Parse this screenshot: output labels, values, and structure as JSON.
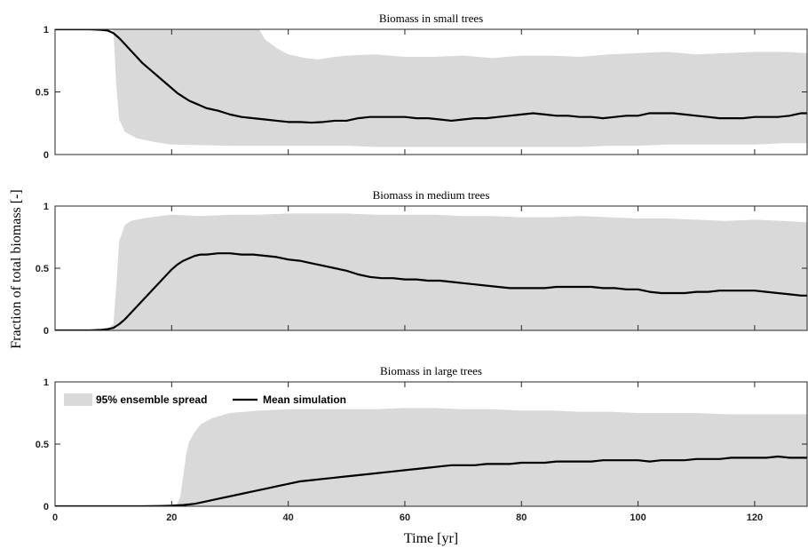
{
  "chart_data": [
    {
      "type": "area",
      "title": "Biomass in small trees",
      "xlim": [
        0,
        129
      ],
      "ylim": [
        0,
        1
      ],
      "yticks": [
        0,
        0.5,
        1
      ],
      "ytick_labels": [
        "0",
        "0.5",
        "1"
      ],
      "grid": false,
      "series": [
        {
          "name": "95% ensemble spread",
          "kind": "band",
          "x": [
            0,
            9,
            10,
            10.5,
            11,
            12,
            14,
            17,
            20,
            30,
            35,
            36,
            38,
            40,
            43,
            45,
            48,
            50,
            55,
            60,
            65,
            70,
            75,
            80,
            85,
            90,
            95,
            100,
            105,
            110,
            115,
            120,
            125,
            129
          ],
          "lower": [
            1,
            1,
            1,
            0.55,
            0.28,
            0.18,
            0.13,
            0.1,
            0.08,
            0.07,
            0.07,
            0.07,
            0.07,
            0.07,
            0.07,
            0.07,
            0.07,
            0.07,
            0.06,
            0.06,
            0.06,
            0.06,
            0.06,
            0.06,
            0.06,
            0.06,
            0.07,
            0.07,
            0.08,
            0.08,
            0.08,
            0.08,
            0.09,
            0.09
          ],
          "upper": [
            1,
            1,
            1,
            1,
            1,
            1,
            1,
            1,
            1,
            1,
            1,
            0.92,
            0.85,
            0.8,
            0.77,
            0.76,
            0.78,
            0.79,
            0.8,
            0.78,
            0.78,
            0.79,
            0.77,
            0.79,
            0.79,
            0.78,
            0.8,
            0.81,
            0.82,
            0.8,
            0.81,
            0.82,
            0.82,
            0.81
          ]
        },
        {
          "name": "Mean simulation",
          "kind": "line",
          "x": [
            0,
            6,
            8,
            9,
            10,
            11,
            12,
            13,
            14,
            15,
            16,
            17,
            18,
            19,
            20,
            21,
            22,
            23,
            24,
            25,
            26,
            27,
            28,
            30,
            32,
            34,
            36,
            38,
            40,
            42,
            44,
            46,
            48,
            50,
            52,
            54,
            56,
            58,
            60,
            62,
            64,
            66,
            68,
            70,
            72,
            74,
            76,
            78,
            80,
            82,
            84,
            86,
            88,
            90,
            92,
            94,
            96,
            98,
            100,
            102,
            104,
            106,
            108,
            110,
            112,
            114,
            116,
            118,
            120,
            122,
            124,
            126,
            128,
            129
          ],
          "y": [
            1,
            1,
            0.995,
            0.99,
            0.97,
            0.93,
            0.88,
            0.83,
            0.78,
            0.73,
            0.69,
            0.65,
            0.61,
            0.57,
            0.53,
            0.49,
            0.46,
            0.43,
            0.41,
            0.39,
            0.37,
            0.36,
            0.35,
            0.32,
            0.3,
            0.29,
            0.28,
            0.27,
            0.26,
            0.26,
            0.255,
            0.26,
            0.27,
            0.27,
            0.29,
            0.3,
            0.3,
            0.3,
            0.3,
            0.29,
            0.29,
            0.28,
            0.27,
            0.28,
            0.29,
            0.29,
            0.3,
            0.31,
            0.32,
            0.33,
            0.32,
            0.31,
            0.31,
            0.3,
            0.3,
            0.29,
            0.3,
            0.31,
            0.31,
            0.33,
            0.33,
            0.33,
            0.32,
            0.31,
            0.3,
            0.29,
            0.29,
            0.29,
            0.3,
            0.3,
            0.3,
            0.31,
            0.33,
            0.33
          ]
        }
      ]
    },
    {
      "type": "area",
      "title": "Biomass in medium trees",
      "xlim": [
        0,
        129
      ],
      "ylim": [
        0,
        1
      ],
      "yticks": [
        0,
        0.5,
        1
      ],
      "ytick_labels": [
        "0",
        "0.5",
        "1"
      ],
      "grid": false,
      "series": [
        {
          "name": "95% ensemble spread",
          "kind": "band",
          "x": [
            0,
            9,
            10,
            10.5,
            11,
            12,
            13,
            15,
            18,
            20,
            25,
            30,
            35,
            40,
            45,
            50,
            55,
            60,
            65,
            70,
            75,
            80,
            85,
            90,
            95,
            100,
            105,
            110,
            115,
            120,
            125,
            129
          ],
          "lower": [
            0,
            0,
            0,
            0,
            0,
            0,
            0,
            0,
            0,
            0,
            0,
            0,
            0,
            0,
            0,
            0,
            0,
            0,
            0,
            0,
            0,
            0,
            0,
            0,
            0,
            0,
            0,
            0,
            0,
            0,
            0,
            0
          ],
          "upper": [
            0,
            0.01,
            0.05,
            0.35,
            0.72,
            0.85,
            0.88,
            0.9,
            0.92,
            0.93,
            0.92,
            0.93,
            0.93,
            0.94,
            0.94,
            0.94,
            0.93,
            0.93,
            0.93,
            0.92,
            0.92,
            0.91,
            0.91,
            0.92,
            0.91,
            0.9,
            0.9,
            0.89,
            0.88,
            0.89,
            0.88,
            0.87
          ]
        },
        {
          "name": "Mean simulation",
          "kind": "line",
          "x": [
            0,
            6,
            8,
            9,
            10,
            11,
            12,
            13,
            14,
            15,
            16,
            17,
            18,
            19,
            20,
            21,
            22,
            23,
            24,
            25,
            26,
            28,
            30,
            32,
            34,
            36,
            38,
            40,
            42,
            44,
            46,
            48,
            50,
            52,
            54,
            56,
            58,
            60,
            62,
            64,
            66,
            68,
            70,
            72,
            74,
            76,
            78,
            80,
            82,
            84,
            86,
            88,
            90,
            92,
            94,
            96,
            98,
            100,
            102,
            104,
            106,
            108,
            110,
            112,
            114,
            116,
            118,
            120,
            122,
            124,
            126,
            128,
            129
          ],
          "y": [
            0,
            0,
            0.005,
            0.01,
            0.02,
            0.05,
            0.09,
            0.14,
            0.19,
            0.24,
            0.29,
            0.34,
            0.39,
            0.44,
            0.49,
            0.53,
            0.56,
            0.58,
            0.6,
            0.61,
            0.61,
            0.62,
            0.62,
            0.61,
            0.61,
            0.6,
            0.59,
            0.57,
            0.56,
            0.54,
            0.52,
            0.5,
            0.48,
            0.45,
            0.43,
            0.42,
            0.42,
            0.41,
            0.41,
            0.4,
            0.4,
            0.39,
            0.38,
            0.37,
            0.36,
            0.35,
            0.34,
            0.34,
            0.34,
            0.34,
            0.35,
            0.35,
            0.35,
            0.35,
            0.34,
            0.34,
            0.33,
            0.33,
            0.31,
            0.3,
            0.3,
            0.3,
            0.31,
            0.31,
            0.32,
            0.32,
            0.32,
            0.32,
            0.31,
            0.3,
            0.29,
            0.28,
            0.28
          ]
        }
      ]
    },
    {
      "type": "area",
      "title": "Biomass in large trees",
      "xlim": [
        0,
        129
      ],
      "ylim": [
        0,
        1
      ],
      "yticks": [
        0,
        0.5,
        1
      ],
      "ytick_labels": [
        "0",
        "0.5",
        "1"
      ],
      "xticks": [
        0,
        20,
        40,
        60,
        80,
        100,
        120
      ],
      "xtick_labels": [
        "0",
        "20",
        "40",
        "60",
        "80",
        "100",
        "120"
      ],
      "xlabel": "Time [yr]",
      "grid": false,
      "legend": {
        "placement": "top-left",
        "orientation": "horizontal"
      },
      "series": [
        {
          "name": "95% ensemble spread",
          "kind": "band",
          "x": [
            0,
            20,
            21,
            21.5,
            22,
            22.5,
            23,
            24,
            25,
            27,
            30,
            35,
            40,
            45,
            50,
            55,
            60,
            65,
            70,
            75,
            80,
            85,
            90,
            95,
            100,
            105,
            110,
            115,
            120,
            125,
            129
          ],
          "lower": [
            0,
            0,
            0,
            0,
            0,
            0,
            0,
            0,
            0,
            0,
            0,
            0,
            0,
            0,
            0,
            0,
            0,
            0,
            0,
            0,
            0,
            0,
            0,
            0,
            0,
            0,
            0,
            0,
            0,
            0,
            0
          ],
          "upper": [
            0,
            0,
            0.02,
            0.08,
            0.25,
            0.42,
            0.52,
            0.6,
            0.66,
            0.71,
            0.75,
            0.77,
            0.78,
            0.78,
            0.78,
            0.78,
            0.79,
            0.79,
            0.78,
            0.78,
            0.77,
            0.77,
            0.76,
            0.76,
            0.75,
            0.75,
            0.75,
            0.74,
            0.74,
            0.74,
            0.74
          ]
        },
        {
          "name": "Mean simulation",
          "kind": "line",
          "x": [
            0,
            15,
            18,
            20,
            22,
            24,
            26,
            28,
            30,
            32,
            34,
            36,
            38,
            40,
            42,
            44,
            46,
            48,
            50,
            52,
            54,
            56,
            58,
            60,
            62,
            64,
            66,
            68,
            70,
            72,
            74,
            76,
            78,
            80,
            82,
            84,
            86,
            88,
            90,
            92,
            94,
            96,
            98,
            100,
            102,
            104,
            106,
            108,
            110,
            112,
            114,
            116,
            118,
            120,
            122,
            124,
            126,
            128,
            129
          ],
          "y": [
            0,
            0,
            0.002,
            0.005,
            0.01,
            0.02,
            0.04,
            0.06,
            0.08,
            0.1,
            0.12,
            0.14,
            0.16,
            0.18,
            0.2,
            0.21,
            0.22,
            0.23,
            0.24,
            0.25,
            0.26,
            0.27,
            0.28,
            0.29,
            0.3,
            0.31,
            0.32,
            0.33,
            0.33,
            0.33,
            0.34,
            0.34,
            0.34,
            0.35,
            0.35,
            0.35,
            0.36,
            0.36,
            0.36,
            0.36,
            0.37,
            0.37,
            0.37,
            0.37,
            0.36,
            0.37,
            0.37,
            0.37,
            0.38,
            0.38,
            0.38,
            0.39,
            0.39,
            0.39,
            0.39,
            0.4,
            0.39,
            0.39,
            0.39
          ]
        }
      ]
    }
  ],
  "ylabel": "Fraction of  total biomass [-]",
  "colors": {
    "band": "#d9d9d9",
    "mean": "#000000",
    "axes": "#262626"
  }
}
